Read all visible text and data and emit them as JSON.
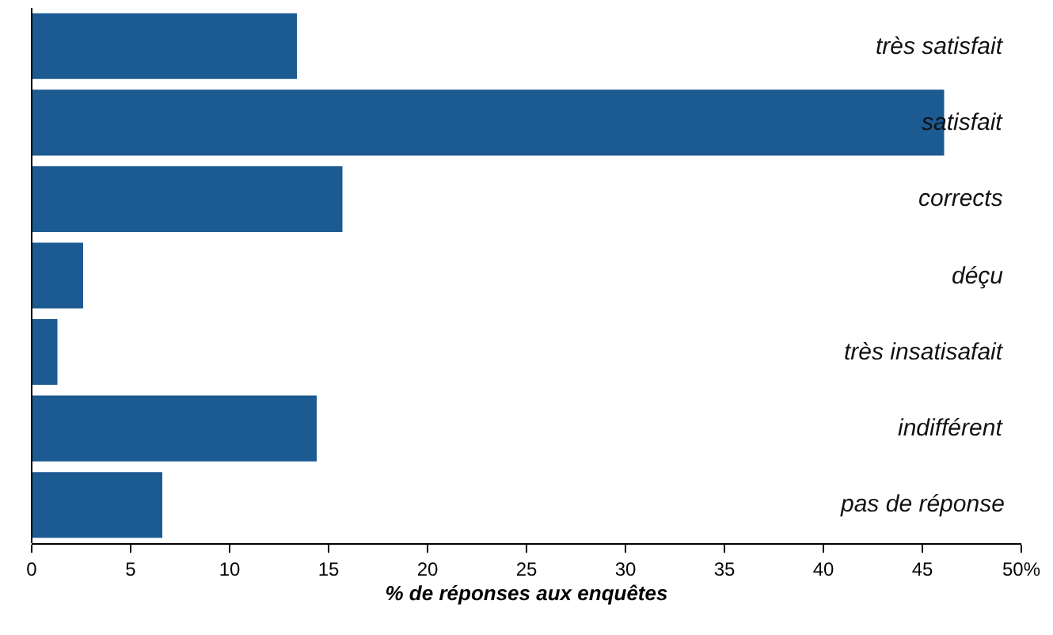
{
  "chart_data": {
    "type": "bar",
    "orientation": "horizontal",
    "xlabel": "% de réponses aux enquêtes",
    "categories": [
      "très satisfait",
      "satisfait",
      "corrects",
      "déçu",
      "très insatisafait",
      "indifférent",
      "pas de réponse"
    ],
    "values": [
      13.4,
      46.1,
      15.7,
      2.6,
      1.3,
      14.4,
      6.6
    ],
    "color": "#1c5a92",
    "xlim": [
      0,
      50
    ],
    "xticks": [
      0,
      5,
      10,
      15,
      20,
      25,
      30,
      35,
      40,
      45,
      {
        "value": 50,
        "label": "50%"
      }
    ],
    "grid": false
  }
}
